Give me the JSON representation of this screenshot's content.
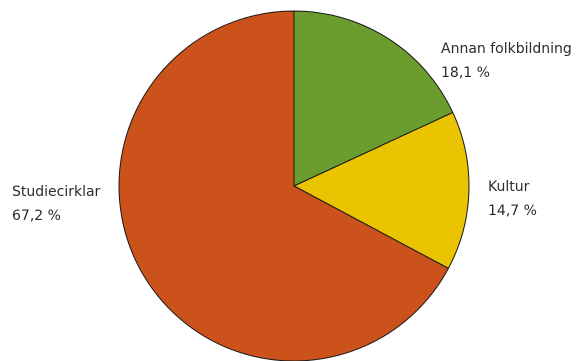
{
  "chart_data": {
    "type": "pie",
    "title": "",
    "slices": [
      {
        "label": "Annan folkbildning",
        "value": 18.1,
        "value_label": "18,1 %",
        "color": "#6a9c2e"
      },
      {
        "label": "Kultur",
        "value": 14.7,
        "value_label": "14,7 %",
        "color": "#eac400"
      },
      {
        "label": "Studiecirklar",
        "value": 67.2,
        "value_label": "67,2 %",
        "color": "#cc521b"
      }
    ],
    "start_angle": "12 o'clock",
    "direction": "clockwise",
    "legend": "none"
  }
}
